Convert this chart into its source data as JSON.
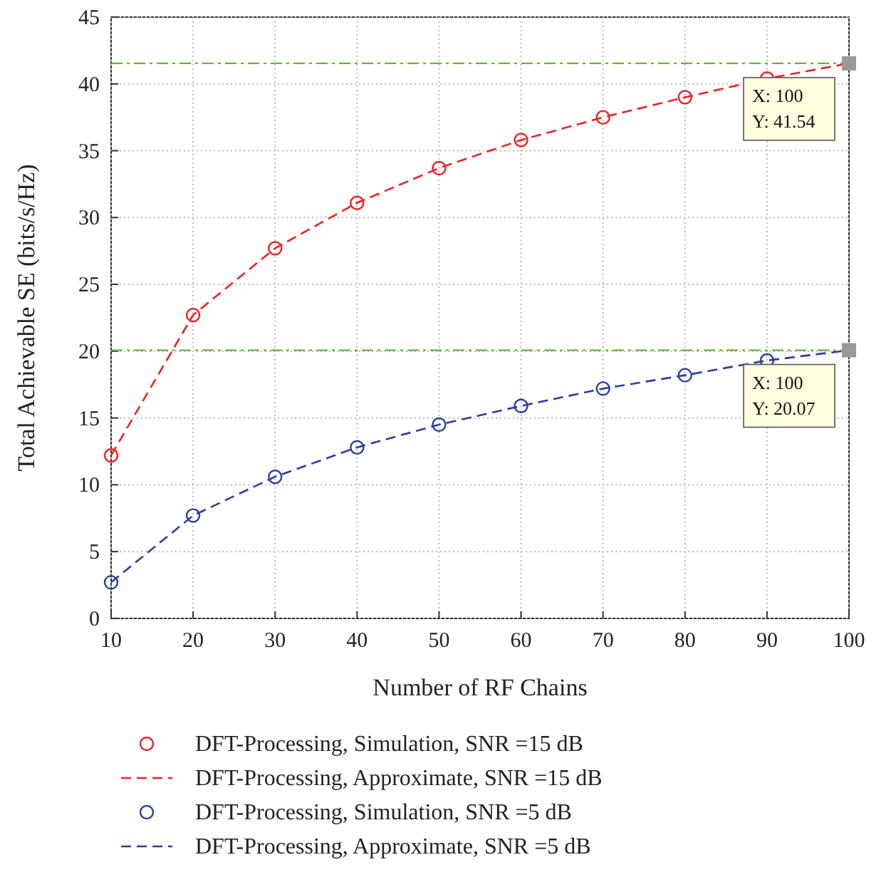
{
  "chart_data": {
    "type": "line",
    "xlabel": "Number of RF Chains",
    "ylabel": "Total Achievable SE (bits/s/Hz)",
    "xlim": [
      10,
      100
    ],
    "xticks": [
      10,
      20,
      30,
      40,
      50,
      60,
      70,
      80,
      90,
      100
    ],
    "ylim": [
      0,
      45
    ],
    "yticks": [
      0,
      5,
      10,
      15,
      20,
      25,
      30,
      35,
      40,
      45
    ],
    "grid": true,
    "legend": "bottom",
    "series": [
      {
        "name": "DFT-Processing, Simulation, SNR =15 dB",
        "type": "scatter",
        "marker": "circle",
        "color": "#ee2222",
        "x": [
          10,
          20,
          30,
          40,
          50,
          60,
          70,
          80,
          90
        ],
        "values": [
          12.2,
          22.7,
          27.7,
          31.1,
          33.7,
          35.8,
          37.5,
          39.0,
          40.4
        ]
      },
      {
        "name": "DFT-Processing, Approximate, SNR =15 dB",
        "line_style": "dashed",
        "color": "#ee2222",
        "x": [
          10,
          20,
          30,
          40,
          50,
          60,
          70,
          80,
          90,
          100
        ],
        "values": [
          12.2,
          22.7,
          27.7,
          31.1,
          33.7,
          35.8,
          37.5,
          39.0,
          40.4,
          41.54
        ]
      },
      {
        "name": "DFT-Processing, Simulation, SNR =5 dB",
        "type": "scatter",
        "marker": "circle",
        "color": "#2b3f9e",
        "x": [
          10,
          20,
          30,
          40,
          50,
          60,
          70,
          80,
          90
        ],
        "values": [
          2.7,
          7.7,
          10.6,
          12.8,
          14.5,
          15.9,
          17.2,
          18.2,
          19.3
        ]
      },
      {
        "name": "DFT-Processing, Approximate, SNR =5 dB",
        "line_style": "dashed",
        "color": "#2b3f9e",
        "x": [
          10,
          20,
          30,
          40,
          50,
          60,
          70,
          80,
          90,
          100
        ],
        "values": [
          2.7,
          7.7,
          10.6,
          12.8,
          14.5,
          15.9,
          17.2,
          18.2,
          19.3,
          20.07
        ]
      }
    ],
    "ref_lines": [
      {
        "axis": "y",
        "value": 41.54,
        "color": "#66b832",
        "line_style": "dashed"
      },
      {
        "axis": "y",
        "value": 20.07,
        "color": "#66b832",
        "line_style": "dashed"
      }
    ],
    "annotations": [
      {
        "text": "X: 100\nY: 41.54",
        "x": 100,
        "y": 41.54
      },
      {
        "text": "X: 100\nY: 20.07",
        "x": 100,
        "y": 20.07
      }
    ]
  }
}
